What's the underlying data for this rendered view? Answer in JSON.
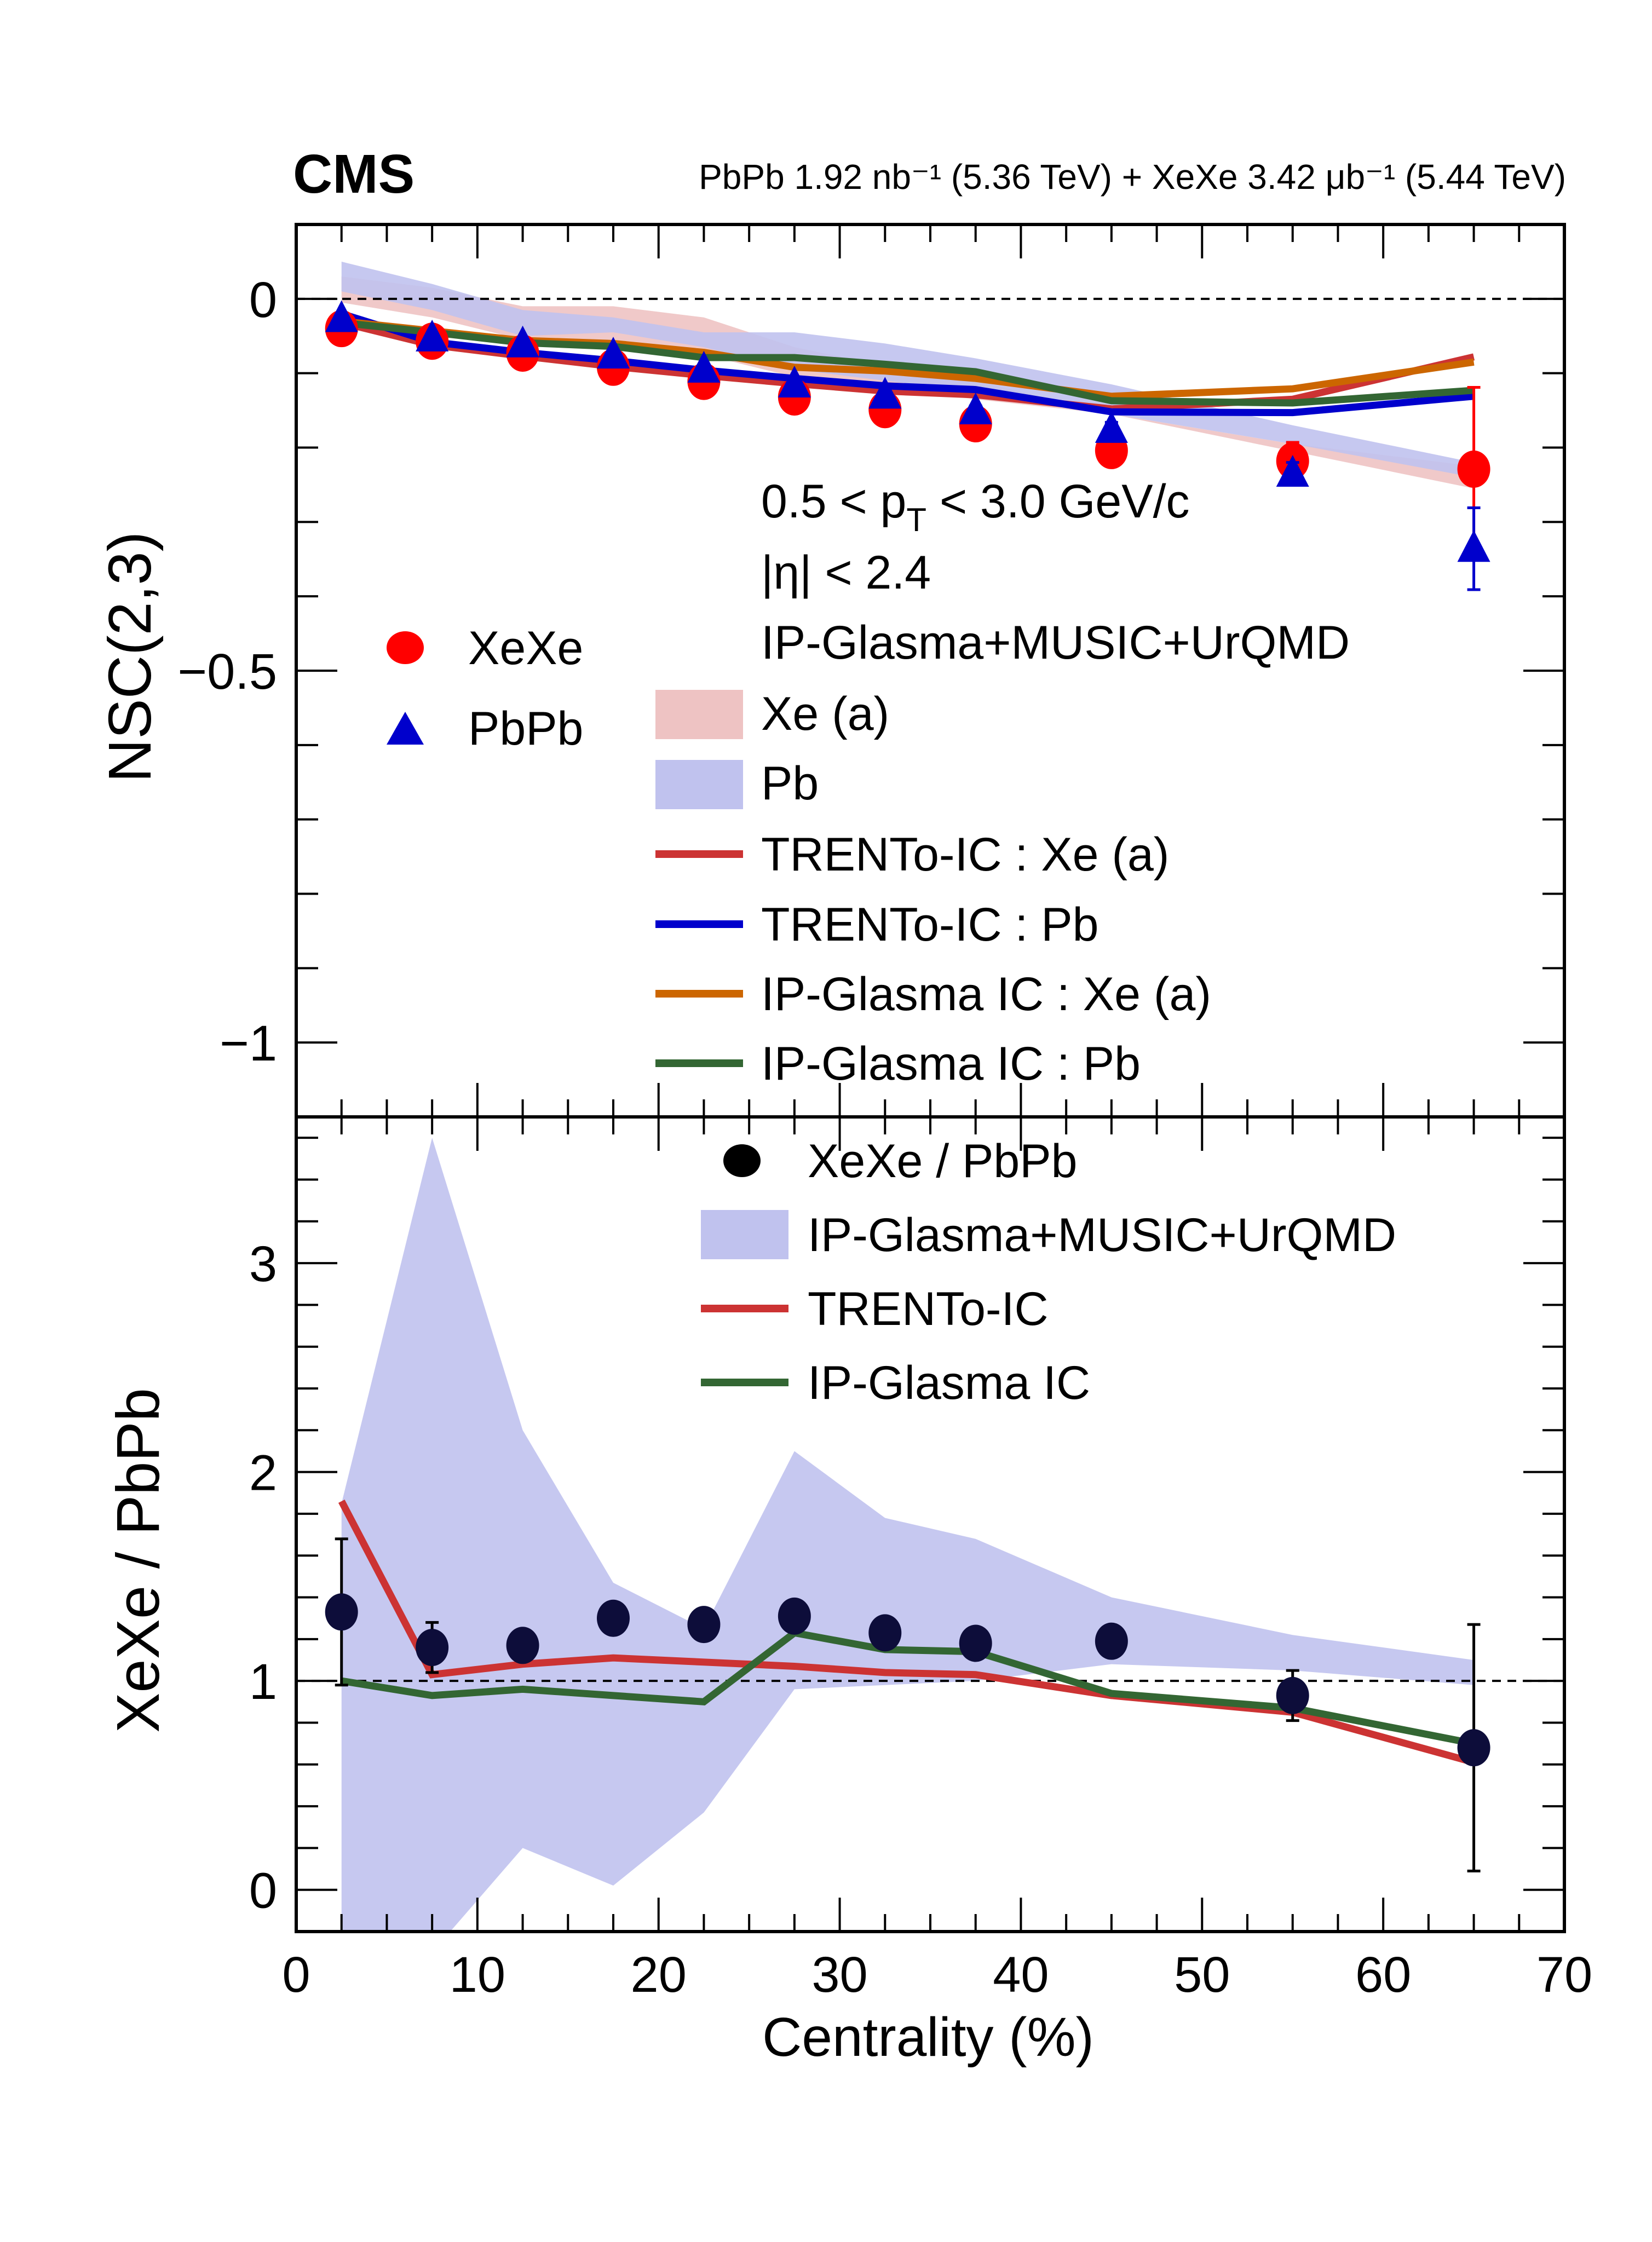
{
  "chart_data": [
    {
      "type": "scatter",
      "panel": "top",
      "experiment_label": "CMS",
      "lumi_label": "PbPb 1.92 nb⁻¹ (5.36 TeV) + XeXe 3.42 μb⁻¹ (5.44 TeV)",
      "ylabel": "NSC(2,3)",
      "xlabel": "",
      "xlim": [
        0,
        70
      ],
      "ylim": [
        -1.1,
        0.1
      ],
      "yticks": [
        0,
        -0.5,
        -1
      ],
      "ytick_labels": [
        "0",
        "−0.5",
        "−1"
      ],
      "reference_line": 0,
      "annotations": [
        "0.5 < p_T < 3.0 GeV/c",
        "|η| < 2.4",
        "IP-Glasma+MUSIC+UrQMD"
      ],
      "x": [
        2.5,
        7.5,
        12.5,
        17.5,
        22.5,
        27.5,
        32.5,
        37.5,
        45,
        55,
        65
      ],
      "series": [
        {
          "name": "XeXe",
          "kind": "points",
          "marker": "circle",
          "color": "#ff0000",
          "values": [
            -0.04,
            -0.057,
            -0.073,
            -0.092,
            -0.111,
            -0.132,
            -0.149,
            -0.168,
            -0.204,
            -0.218,
            -0.229
          ],
          "errors": [
            0.003,
            0.003,
            0.004,
            0.004,
            0.005,
            0.006,
            0.007,
            0.008,
            0.012,
            0.025,
            0.11
          ]
        },
        {
          "name": "PbPb",
          "kind": "points",
          "marker": "triangle",
          "color": "#0000cc",
          "values": [
            -0.027,
            -0.053,
            -0.061,
            -0.076,
            -0.095,
            -0.115,
            -0.13,
            -0.151,
            -0.176,
            -0.235,
            -0.336
          ],
          "errors": [
            0.002,
            0.002,
            0.003,
            0.003,
            0.004,
            0.005,
            0.006,
            0.007,
            0.01,
            0.015,
            0.055
          ]
        },
        {
          "name": "Xe (a)",
          "kind": "band",
          "color": "#eec3c3",
          "upper": [
            0.03,
            0.015,
            -0.01,
            -0.01,
            -0.025,
            -0.065,
            -0.09,
            -0.11,
            -0.155,
            -0.195,
            -0.225
          ],
          "lower": [
            -0.005,
            -0.025,
            -0.055,
            -0.055,
            -0.075,
            -0.105,
            -0.12,
            -0.135,
            -0.155,
            -0.205,
            -0.255
          ]
        },
        {
          "name": "Pb",
          "kind": "band",
          "color": "#c0c2ee",
          "upper": [
            0.05,
            0.02,
            -0.015,
            -0.025,
            -0.045,
            -0.045,
            -0.06,
            -0.08,
            -0.115,
            -0.17,
            -0.22
          ],
          "lower": [
            0.01,
            -0.015,
            -0.05,
            -0.045,
            -0.065,
            -0.095,
            -0.11,
            -0.125,
            -0.155,
            -0.195,
            -0.24
          ]
        },
        {
          "name": "TRENTo-IC : Xe (a)",
          "kind": "line",
          "color": "#cc3333",
          "values": [
            -0.032,
            -0.062,
            -0.077,
            -0.091,
            -0.103,
            -0.114,
            -0.124,
            -0.129,
            -0.148,
            -0.135,
            -0.078
          ]
        },
        {
          "name": "TRENTo-IC : Pb",
          "kind": "line",
          "color": "#0000cc",
          "values": [
            -0.02,
            -0.058,
            -0.072,
            -0.083,
            -0.096,
            -0.107,
            -0.117,
            -0.122,
            -0.152,
            -0.153,
            -0.131
          ]
        },
        {
          "name": "IP-Glasma IC : Xe (a)",
          "kind": "line",
          "color": "#cc6600",
          "values": [
            -0.03,
            -0.043,
            -0.056,
            -0.06,
            -0.072,
            -0.092,
            -0.097,
            -0.107,
            -0.131,
            -0.121,
            -0.085
          ]
        },
        {
          "name": "IP-Glasma IC : Pb",
          "kind": "line",
          "color": "#336633",
          "values": [
            -0.032,
            -0.045,
            -0.059,
            -0.064,
            -0.079,
            -0.079,
            -0.088,
            -0.098,
            -0.137,
            -0.14,
            -0.123
          ]
        }
      ],
      "legend": {
        "placement": "center",
        "data_entries": [
          "XeXe",
          "PbPb"
        ],
        "model_header": "IP-Glasma+MUSIC+UrQMD",
        "model_entries": [
          "Xe (a)",
          "Pb",
          "TRENTo-IC : Xe (a)",
          "TRENTo-IC : Pb",
          "IP-Glasma IC : Xe (a)",
          "IP-Glasma IC : Pb"
        ]
      }
    },
    {
      "type": "scatter",
      "panel": "bottom",
      "ylabel": "XeXe / PbPb",
      "xlabel": "Centrality (%)",
      "xlim": [
        0,
        70
      ],
      "ylim": [
        -0.2,
        3.7
      ],
      "xticks": [
        0,
        10,
        20,
        30,
        40,
        50,
        60,
        70
      ],
      "xtick_labels": [
        "0",
        "10",
        "20",
        "30",
        "40",
        "50",
        "60",
        "70"
      ],
      "yticks": [
        0,
        1,
        2,
        3
      ],
      "ytick_labels": [
        "0",
        "1",
        "2",
        "3"
      ],
      "reference_line": 1,
      "x": [
        2.5,
        7.5,
        12.5,
        17.5,
        22.5,
        27.5,
        32.5,
        37.5,
        45,
        55,
        65
      ],
      "series": [
        {
          "name": "XeXe / PbPb",
          "kind": "points",
          "marker": "circle",
          "color": "#000000",
          "values": [
            1.33,
            1.16,
            1.17,
            1.3,
            1.27,
            1.31,
            1.23,
            1.18,
            1.19,
            0.93,
            0.68
          ],
          "errors": [
            0.35,
            0.12,
            0.06,
            0.05,
            0.04,
            0.05,
            0.04,
            0.04,
            0.04,
            0.12,
            0.59
          ]
        },
        {
          "name": "IP-Glasma+MUSIC+UrQMD",
          "kind": "band",
          "color": "#c0c2ee",
          "upper": [
            1.85,
            3.6,
            2.2,
            1.47,
            1.25,
            2.1,
            1.78,
            1.68,
            1.4,
            1.22,
            1.1
          ],
          "lower": [
            -0.3,
            -0.3,
            0.2,
            0.02,
            0.37,
            0.96,
            0.98,
            1.0,
            1.08,
            1.05,
            0.98
          ]
        },
        {
          "name": "TRENTo-IC",
          "kind": "line",
          "color": "#cc3333",
          "values": [
            1.86,
            1.03,
            1.08,
            1.11,
            1.09,
            1.07,
            1.04,
            1.03,
            0.93,
            0.85,
            0.61
          ]
        },
        {
          "name": "IP-Glasma IC",
          "kind": "line",
          "color": "#336633",
          "values": [
            1.0,
            0.93,
            0.96,
            0.93,
            0.9,
            1.23,
            1.15,
            1.14,
            0.94,
            0.87,
            0.7
          ]
        }
      ],
      "legend": {
        "placement": "top-right",
        "entries": [
          "XeXe / PbPb",
          "IP-Glasma+MUSIC+UrQMD",
          "TRENTo-IC",
          "IP-Glasma IC"
        ]
      }
    }
  ]
}
